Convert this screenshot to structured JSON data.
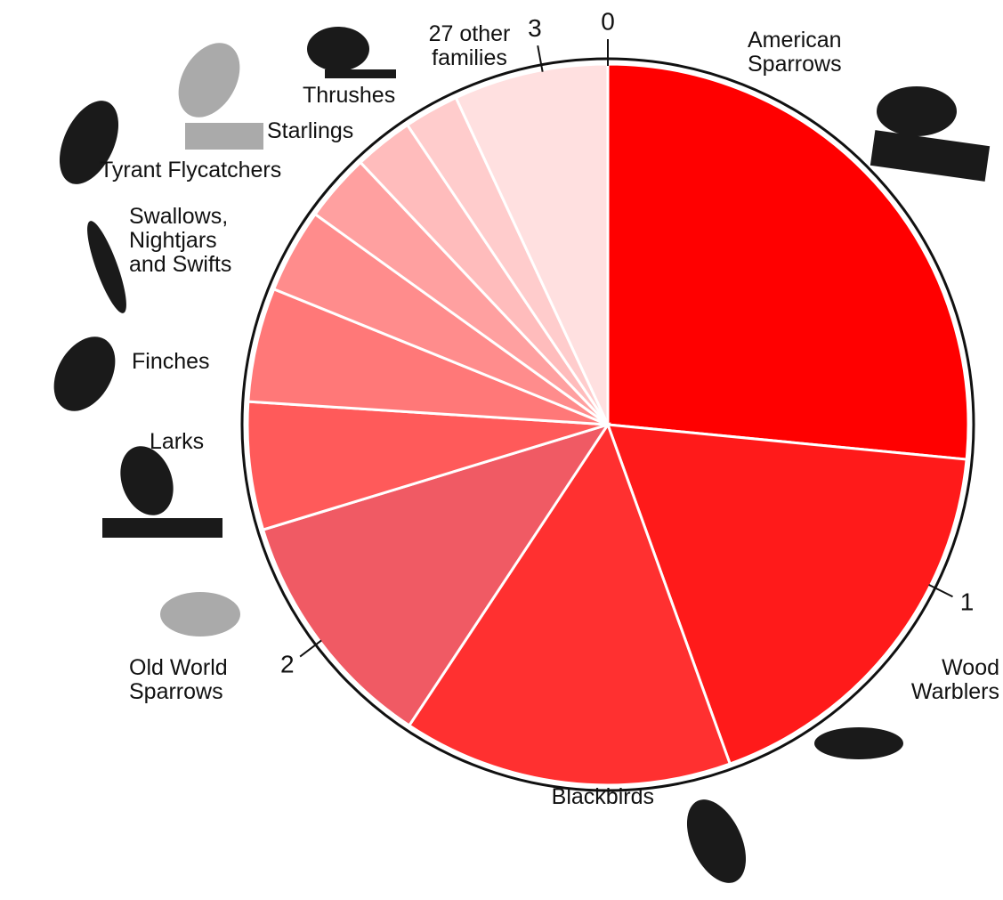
{
  "chart_data": {
    "type": "pie",
    "categories": [
      "American Sparrows",
      "Wood Warblers",
      "Blackbirds",
      "Old World Sparrows",
      "Larks",
      "Finches",
      "Swallows, Nightjars and Swifts",
      "Tyrant Flycatchers",
      "Starlings",
      "Thrushes",
      "27 other families"
    ],
    "values": [
      0.82,
      0.555,
      0.457,
      0.34,
      0.177,
      0.158,
      0.117,
      0.094,
      0.082,
      0.076,
      0.214
    ],
    "colors": [
      "#ff0000",
      "#ff1a1a",
      "#ff3030",
      "#f05a64",
      "#ff5a5a",
      "#ff7878",
      "#ff8c8c",
      "#ffa0a0",
      "#ffbcbc",
      "#ffcccc",
      "#ffe0e0"
    ],
    "ylim": [
      0,
      3.09
    ],
    "yticks": [
      0,
      1,
      2,
      3
    ]
  }
}
